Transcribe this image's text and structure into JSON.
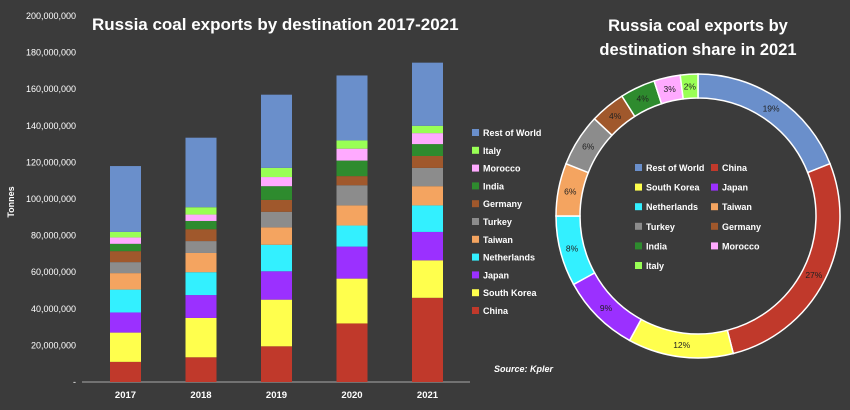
{
  "chart_data": [
    {
      "type": "bar",
      "stacked": true,
      "title": "Russia coal exports by destination 2017-2021",
      "ylabel": "Tonnes",
      "ylim": [
        0,
        200000000
      ],
      "ytick_labels": [
        "-",
        "20,000,000",
        "40,000,000",
        "60,000,000",
        "80,000,000",
        "100,000,000",
        "120,000,000",
        "140,000,000",
        "160,000,000",
        "180,000,000",
        "200,000,000"
      ],
      "categories": [
        "2017",
        "2018",
        "2019",
        "2020",
        "2021"
      ],
      "series": [
        {
          "name": "China",
          "color": "#c0392b",
          "values": [
            11000000,
            13500000,
            19500000,
            32000000,
            46000000
          ]
        },
        {
          "name": "South Korea",
          "color": "#ffff4d",
          "values": [
            16000000,
            21500000,
            25500000,
            24500000,
            20500000
          ]
        },
        {
          "name": "Japan",
          "color": "#9b30ff",
          "values": [
            11000000,
            12500000,
            15500000,
            17500000,
            15500000
          ]
        },
        {
          "name": "Netherlands",
          "color": "#33f0ff",
          "values": [
            12500000,
            12500000,
            14500000,
            11500000,
            14500000
          ]
        },
        {
          "name": "Taiwan",
          "color": "#f4a460",
          "values": [
            9000000,
            10500000,
            9500000,
            11000000,
            10500000
          ]
        },
        {
          "name": "Turkey",
          "color": "#8c8c8c",
          "values": [
            6000000,
            6500000,
            8500000,
            11000000,
            10000000
          ]
        },
        {
          "name": "Germany",
          "color": "#a0582c",
          "values": [
            6000000,
            6500000,
            6500000,
            5000000,
            6500000
          ]
        },
        {
          "name": "India",
          "color": "#2e8b2e",
          "values": [
            4000000,
            4500000,
            7500000,
            8500000,
            6500000
          ]
        },
        {
          "name": "Morocco",
          "color": "#ffaaff",
          "values": [
            3500000,
            3500000,
            5000000,
            6500000,
            6000000
          ]
        },
        {
          "name": "Italy",
          "color": "#99ff55",
          "values": [
            3000000,
            4000000,
            5000000,
            4500000,
            4000000
          ]
        },
        {
          "name": "Rest of World",
          "color": "#6a8fcb",
          "values": [
            36000000,
            38000000,
            40000000,
            35500000,
            34500000
          ]
        }
      ],
      "legend_order": [
        "Rest of World",
        "Italy",
        "Morocco",
        "India",
        "Germany",
        "Turkey",
        "Taiwan",
        "Netherlands",
        "Japan",
        "South Korea",
        "China"
      ],
      "legend_position": "right",
      "grid": false,
      "annotation": "Source: Kpler"
    },
    {
      "type": "pie",
      "donut": true,
      "title_lines": [
        "Russia coal exports by",
        "destination share in 2021"
      ],
      "slices": [
        {
          "name": "Rest of World",
          "color": "#6a8fcb",
          "value": 19
        },
        {
          "name": "China",
          "color": "#c0392b",
          "value": 27
        },
        {
          "name": "South Korea",
          "color": "#ffff4d",
          "value": 12
        },
        {
          "name": "Japan",
          "color": "#9b30ff",
          "value": 9
        },
        {
          "name": "Netherlands",
          "color": "#33f0ff",
          "value": 8
        },
        {
          "name": "Taiwan",
          "color": "#f4a460",
          "value": 6
        },
        {
          "name": "Turkey",
          "color": "#8c8c8c",
          "value": 6
        },
        {
          "name": "Germany",
          "color": "#a0582c",
          "value": 4
        },
        {
          "name": "India",
          "color": "#2e8b2e",
          "value": 4
        },
        {
          "name": "Morocco",
          "color": "#ffaaff",
          "value": 3
        },
        {
          "name": "Italy",
          "color": "#99ff55",
          "value": 2
        }
      ],
      "label_suffix": "%",
      "legend_position": "center",
      "legend_columns": 2
    }
  ]
}
